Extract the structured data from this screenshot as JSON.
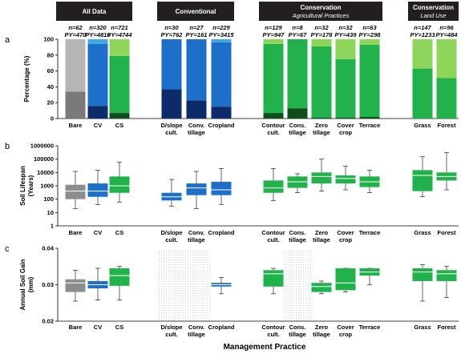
{
  "colors": {
    "header_bg": "#231f20",
    "header_text": "#ffffff",
    "gray_dark": "#7a7a7a",
    "gray_light": "#b5b5b5",
    "gray_box": "#8c8c8c",
    "blue_dark": "#0d2a6b",
    "blue_mid": "#1e6fc9",
    "blue_light": "#3fa9e6",
    "green_dark": "#0e4d1c",
    "green_mid": "#21b24b",
    "green_light": "#8ed65a",
    "box_median": "#ffffff",
    "whisker": "#000000",
    "hatch": "#c9d7e6"
  },
  "groups": [
    {
      "label": "All Data",
      "sublabel": ""
    },
    {
      "label": "Conventional",
      "sublabel": ""
    },
    {
      "label": "Conservation",
      "sublabel": "Agricultural Practices"
    },
    {
      "label": "Conservation",
      "sublabel": "Land Use"
    }
  ],
  "categories": [
    {
      "label": "Bare",
      "n": "n=62",
      "py": "PY=470",
      "color": "gray"
    },
    {
      "label": "CV",
      "n": "n=320",
      "py": "PY=4816",
      "color": "blue"
    },
    {
      "label": "CS",
      "n": "n=721",
      "py": "PY=4744",
      "color": "green"
    },
    {
      "label": "D/slope cult.",
      "n": "n=30",
      "py": "PY=762",
      "color": "blue"
    },
    {
      "label": "Conv. tillage",
      "n": "n=27",
      "py": "PY=161",
      "color": "blue"
    },
    {
      "label": "Cropland",
      "n": "n=229",
      "py": "PY=3415",
      "color": "blue"
    },
    {
      "label": "Contour cult.",
      "n": "n=129",
      "py": "PY=947",
      "color": "green"
    },
    {
      "label": "Cons. tillage",
      "n": "n=8",
      "py": "PY=67",
      "color": "green"
    },
    {
      "label": "Zero tillage",
      "n": "n=32",
      "py": "PY=178",
      "color": "green"
    },
    {
      "label": "Cover crop",
      "n": "n=32",
      "py": "PY=439",
      "color": "green"
    },
    {
      "label": "Terrace",
      "n": "n=63",
      "py": "PY=298",
      "color": "green"
    },
    {
      "label": "Grass",
      "n": "n=147",
      "py": "PY=1233",
      "color": "green"
    },
    {
      "label": "Forest",
      "n": "n=96",
      "py": "PY=484",
      "color": "green"
    }
  ],
  "chart_data": [
    {
      "type": "bar",
      "panel": "a",
      "ylabel": "Percentage (%)",
      "ylim": [
        0,
        100
      ],
      "yticks": [
        "0",
        "20",
        "40",
        "60",
        "80",
        "100"
      ],
      "stacked": true,
      "categories": [
        "Bare",
        "CV",
        "CS",
        "D/slope cult.",
        "Conv. tillage",
        "Cropland",
        "Contour cult.",
        "Cons. tillage",
        "Zero tillage",
        "Cover crop",
        "Terrace",
        "Grass",
        "Forest"
      ],
      "series": [
        {
          "values": [
            34,
            16,
            7,
            37,
            23,
            15,
            7,
            13,
            1,
            1,
            2,
            0,
            0
          ]
        },
        {
          "values": [
            0,
            78,
            72,
            63,
            77,
            81,
            87,
            87,
            90,
            74,
            91,
            63,
            51
          ]
        },
        {
          "values": [
            66,
            6,
            21,
            0,
            0,
            4,
            6,
            0,
            9,
            25,
            7,
            37,
            49
          ]
        }
      ]
    },
    {
      "type": "box",
      "panel": "b",
      "ylabel": "Soil Lifespan (Years)",
      "yscale": "log",
      "ylim": [
        1,
        1000000
      ],
      "yticks": [
        "1",
        "10",
        "100",
        "1000",
        "10000",
        "100000",
        "1000000"
      ],
      "categories": [
        "Bare",
        "CV",
        "CS",
        "D/slope cult.",
        "Conv. tillage",
        "Cropland",
        "Contour cult.",
        "Cons. tillage",
        "Zero tillage",
        "Cover crop",
        "Terrace",
        "Grass",
        "Forest"
      ],
      "boxes": [
        {
          "min": 20,
          "q1": 100,
          "median": 400,
          "q3": 1200,
          "max": 12000
        },
        {
          "min": 40,
          "q1": 150,
          "median": 400,
          "q3": 1500,
          "max": 15000
        },
        {
          "min": 60,
          "q1": 300,
          "median": 1000,
          "q3": 5000,
          "max": 60000
        },
        {
          "min": 30,
          "q1": 80,
          "median": 150,
          "q3": 300,
          "max": 3000
        },
        {
          "min": 20,
          "q1": 200,
          "median": 700,
          "q3": 1500,
          "max": 12000
        },
        {
          "min": 40,
          "q1": 200,
          "median": 500,
          "q3": 2000,
          "max": 20000
        },
        {
          "min": 80,
          "q1": 300,
          "median": 700,
          "q3": 2500,
          "max": 20000
        },
        {
          "min": 300,
          "q1": 700,
          "median": 2000,
          "q3": 5000,
          "max": 8000
        },
        {
          "min": 400,
          "q1": 1500,
          "median": 5000,
          "q3": 10000,
          "max": 100000
        },
        {
          "min": 500,
          "q1": 1500,
          "median": 3500,
          "q3": 6000,
          "max": 30000
        },
        {
          "min": 300,
          "q1": 800,
          "median": 2000,
          "q3": 5000,
          "max": 15000
        },
        {
          "min": 150,
          "q1": 400,
          "median": 6000,
          "q3": 15000,
          "max": 150000
        },
        {
          "min": 500,
          "q1": 2500,
          "median": 5000,
          "q3": 10000,
          "max": 300000
        }
      ]
    },
    {
      "type": "box",
      "panel": "c",
      "ylabel": "Annual Soil Gain (mm)",
      "ylim": [
        0.02,
        0.04
      ],
      "yticks": [
        "0.02",
        "0.03",
        "0.04"
      ],
      "categories": [
        "Bare",
        "CV",
        "CS",
        "D/slope cult.",
        "Conv. tillage",
        "Cropland",
        "Contour cult.",
        "Cons. tillage",
        "Zero tillage",
        "Cover crop",
        "Terrace",
        "Grass",
        "Forest"
      ],
      "no_data": [
        "D/slope cult.",
        "Conv. tillage",
        "Cons. tillage"
      ],
      "boxes": [
        {
          "min": 0.0255,
          "q1": 0.028,
          "median": 0.0305,
          "q3": 0.0315,
          "max": 0.034
        },
        {
          "min": 0.0258,
          "q1": 0.029,
          "median": 0.03,
          "q3": 0.031,
          "max": 0.0345
        },
        {
          "min": 0.0258,
          "q1": 0.0297,
          "median": 0.0325,
          "q3": 0.0345,
          "max": 0.035
        },
        null,
        null,
        {
          "min": 0.0275,
          "q1": 0.0295,
          "median": 0.03,
          "q3": 0.0305,
          "max": 0.032
        },
        {
          "min": 0.0275,
          "q1": 0.0295,
          "median": 0.033,
          "q3": 0.034,
          "max": 0.0345
        },
        null,
        {
          "min": 0.0275,
          "q1": 0.028,
          "median": 0.0295,
          "q3": 0.0305,
          "max": 0.031
        },
        {
          "min": 0.028,
          "q1": 0.0285,
          "median": 0.0305,
          "q3": 0.0345,
          "max": 0.0345
        },
        {
          "min": 0.03,
          "q1": 0.0325,
          "median": 0.0335,
          "q3": 0.0345,
          "max": 0.0345
        },
        {
          "min": 0.0255,
          "q1": 0.031,
          "median": 0.0335,
          "q3": 0.0345,
          "max": 0.0355
        },
        {
          "min": 0.0265,
          "q1": 0.031,
          "median": 0.033,
          "q3": 0.034,
          "max": 0.035
        }
      ]
    }
  ],
  "panel_letters": [
    "a",
    "b",
    "c"
  ],
  "xlabel": "Management Practice"
}
